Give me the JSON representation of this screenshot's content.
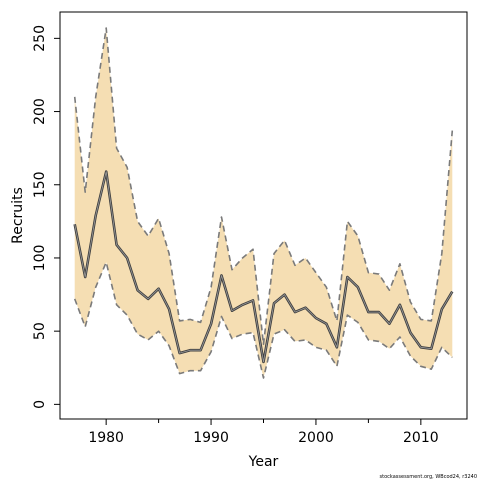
{
  "chart_data": {
    "type": "area",
    "title": "",
    "xlabel": "Year",
    "ylabel": "Recruits",
    "footnote": "stockassessment.org, WBcod24, r3240",
    "xlim": [
      1975.6,
      2014.4
    ],
    "ylim": [
      -10,
      268
    ],
    "x_ticks": [
      1980,
      1990,
      2000,
      2010
    ],
    "x_minor_ticks": [
      1985,
      1995,
      2005
    ],
    "y_ticks": [
      0,
      50,
      100,
      150,
      200,
      250
    ],
    "x": [
      1977,
      1978,
      1979,
      1980,
      1981,
      1982,
      1983,
      1984,
      1985,
      1986,
      1987,
      1988,
      1989,
      1990,
      1991,
      1992,
      1993,
      1994,
      1995,
      1996,
      1997,
      1998,
      1999,
      2000,
      2001,
      2002,
      2003,
      2004,
      2005,
      2006,
      2007,
      2008,
      2009,
      2010,
      2011,
      2012,
      2013
    ],
    "series": [
      {
        "role": "estimate",
        "color": "#404040",
        "values": [
          123,
          87,
          129,
          159,
          109,
          100,
          78,
          72,
          79,
          65,
          35,
          37,
          37,
          55,
          88,
          64,
          68,
          71,
          29,
          69,
          75,
          63,
          66,
          59,
          55,
          39,
          87,
          80,
          63,
          63,
          55,
          68,
          49,
          39,
          38,
          65,
          77
        ]
      },
      {
        "role": "upper",
        "color": "#7a7a7a",
        "values": [
          210,
          145,
          210,
          257,
          175,
          162,
          125,
          115,
          127,
          103,
          57,
          58,
          56,
          80,
          128,
          92,
          100,
          106,
          41,
          103,
          112,
          95,
          100,
          90,
          80,
          57,
          125,
          115,
          90,
          89,
          78,
          96,
          70,
          58,
          57,
          103,
          187
        ]
      },
      {
        "role": "lower",
        "color": "#7a7a7a",
        "values": [
          72,
          53,
          80,
          97,
          68,
          61,
          48,
          44,
          50,
          40,
          21,
          23,
          23,
          36,
          60,
          45,
          48,
          49,
          18,
          48,
          51,
          43,
          44,
          39,
          37,
          26,
          61,
          56,
          44,
          43,
          38,
          46,
          33,
          26,
          24,
          39,
          32
        ]
      }
    ],
    "band_fill": "#f5deb3",
    "grid": false,
    "legend": "none"
  }
}
